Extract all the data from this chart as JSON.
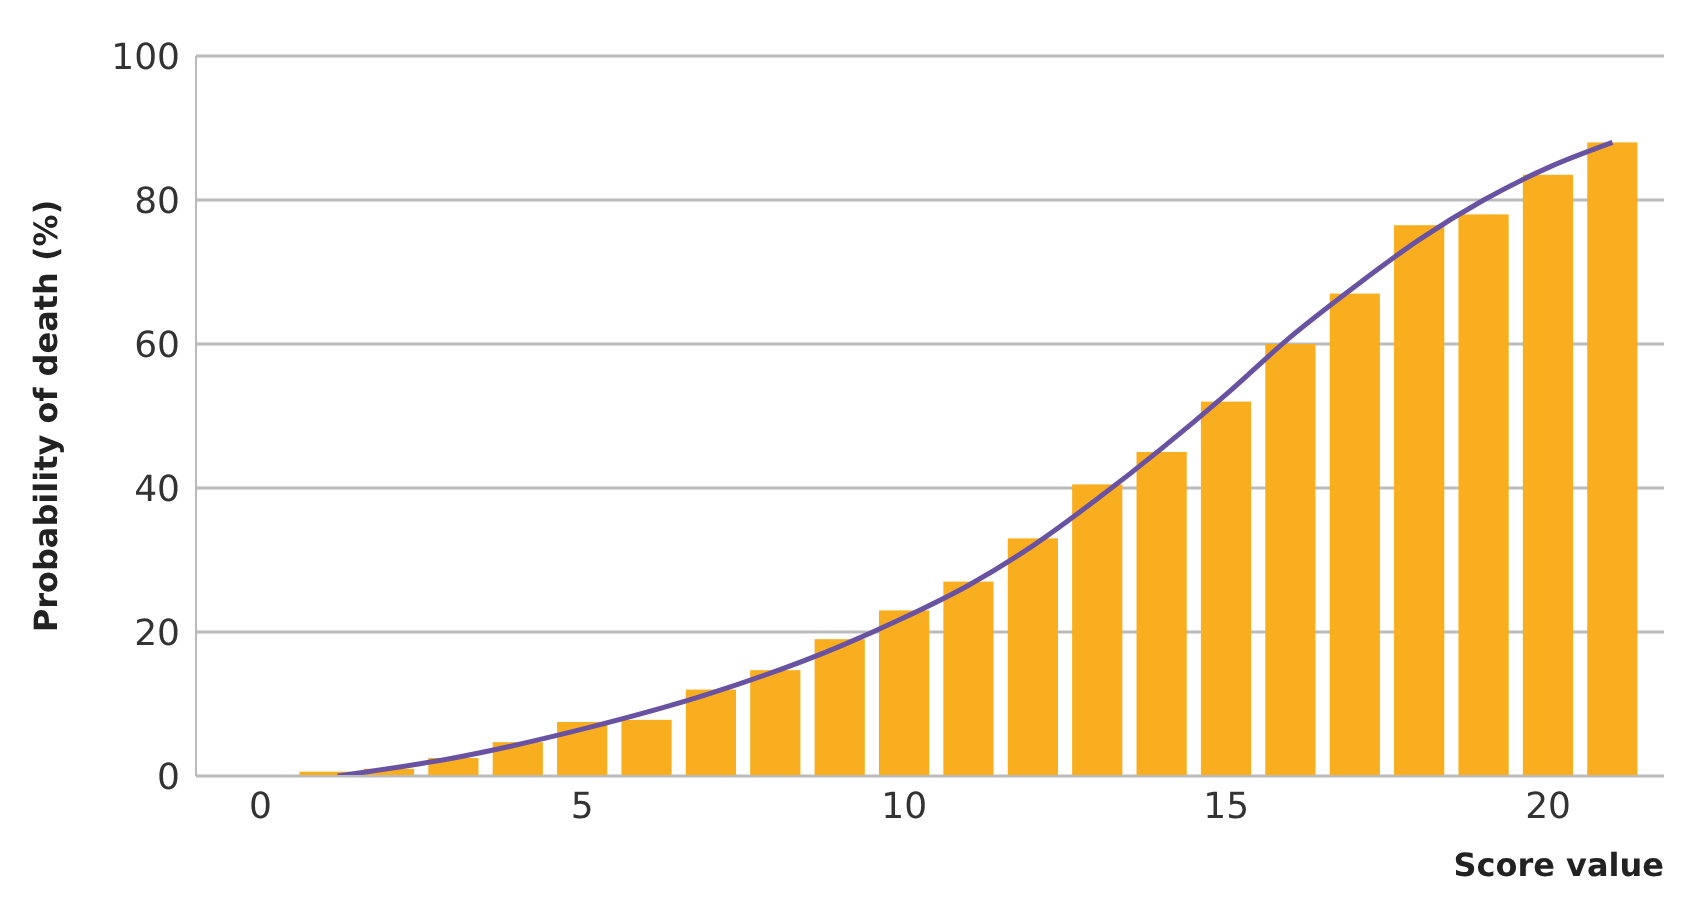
{
  "chart_data": {
    "type": "bar",
    "xlabel": "Score value",
    "ylabel": "Probability of death (%)",
    "x": [
      1,
      2,
      3,
      4,
      5,
      6,
      7,
      8,
      9,
      10,
      11,
      12,
      13,
      14,
      15,
      16,
      17,
      18,
      19,
      20,
      21
    ],
    "series": [
      {
        "color": "#f9ae1f",
        "values": [
          0.6,
          1,
          2.5,
          4.7,
          7.5,
          7.8,
          12,
          14.7,
          19,
          23,
          27,
          33,
          40.5,
          45,
          52,
          60,
          67,
          76.5,
          78,
          83.5,
          88
        ]
      },
      {
        "type": "line",
        "color": "#6a52a3",
        "x": [
          1.2,
          3,
          5,
          7,
          9,
          10,
          11,
          12,
          13,
          14,
          15,
          16,
          17,
          18,
          19,
          20,
          21
        ],
        "values": [
          0,
          2.5,
          6.5,
          11.5,
          18,
          22,
          26.5,
          32,
          38.5,
          45.5,
          53,
          61,
          68,
          74.5,
          80,
          84.5,
          88
        ]
      }
    ],
    "xlim": [
      -1,
      21.8
    ],
    "xticks": [
      0,
      5,
      10,
      15,
      20
    ],
    "ylim": [
      0,
      100
    ],
    "yticks": [
      0,
      20,
      40,
      60,
      80,
      100
    ],
    "grid": "y",
    "marker": "none"
  }
}
